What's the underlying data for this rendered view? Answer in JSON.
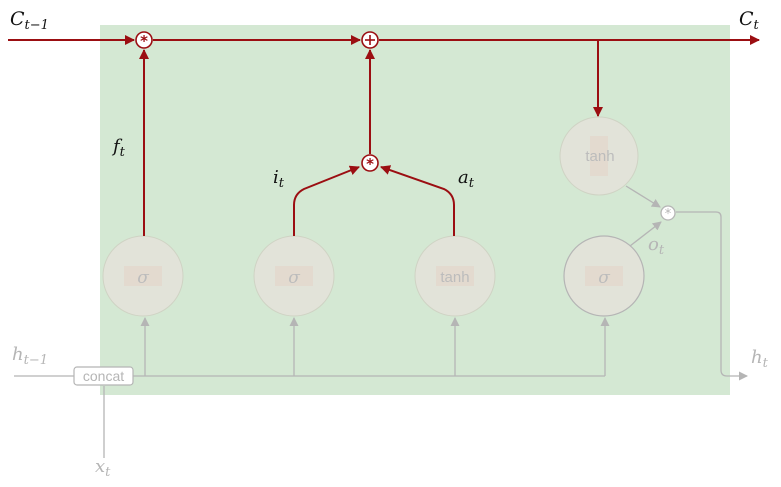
{
  "diagram": {
    "title": "",
    "cell_prev_label": {
      "main": "C",
      "sub": "t−1"
    },
    "cell_out_label": {
      "main": "C",
      "sub": "t"
    },
    "hidden_prev_label": {
      "main": "h",
      "sub": "t−1"
    },
    "hidden_out_label": {
      "main": "h",
      "sub": "t"
    },
    "input_label": {
      "main": "x",
      "sub": "t"
    },
    "forget_label": {
      "main": "f",
      "sub": "t"
    },
    "input_gate_label": {
      "main": "i",
      "sub": "t"
    },
    "candidate_label": {
      "main": "a",
      "sub": "t"
    },
    "output_gate_label": {
      "main": "o",
      "sub": "t"
    },
    "concat_label": "concat",
    "gates": {
      "forget": "σ",
      "input": "σ",
      "candidate": "tanh",
      "output": "σ",
      "cell_tanh": "tanh"
    },
    "colors": {
      "active": "#9b0e12",
      "inactive": "#b5b5b5",
      "cell_bg": "#d4e8d3",
      "gate_fill": "#e2e3d9"
    }
  }
}
